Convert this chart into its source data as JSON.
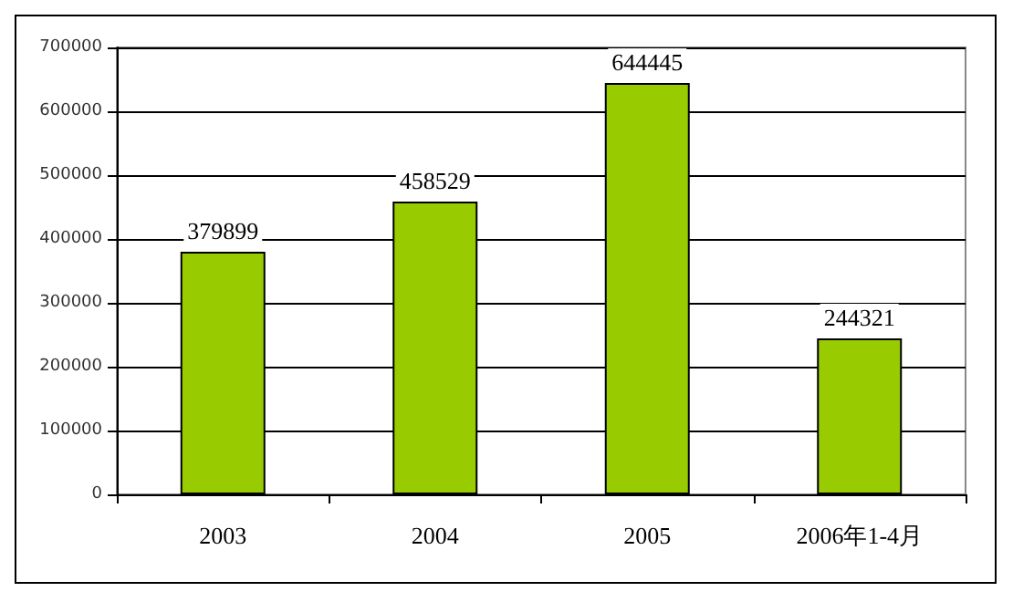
{
  "chart_data": {
    "type": "bar",
    "categories": [
      "2003",
      "2004",
      "2005",
      "2006年1-4月"
    ],
    "values": [
      379899,
      458529,
      644445,
      244321
    ],
    "color": "#99cc00",
    "ylim": [
      0,
      700000
    ],
    "yticks": [
      0,
      100000,
      200000,
      300000,
      400000,
      500000,
      600000,
      700000
    ],
    "grid": "y",
    "data_labels": true
  }
}
